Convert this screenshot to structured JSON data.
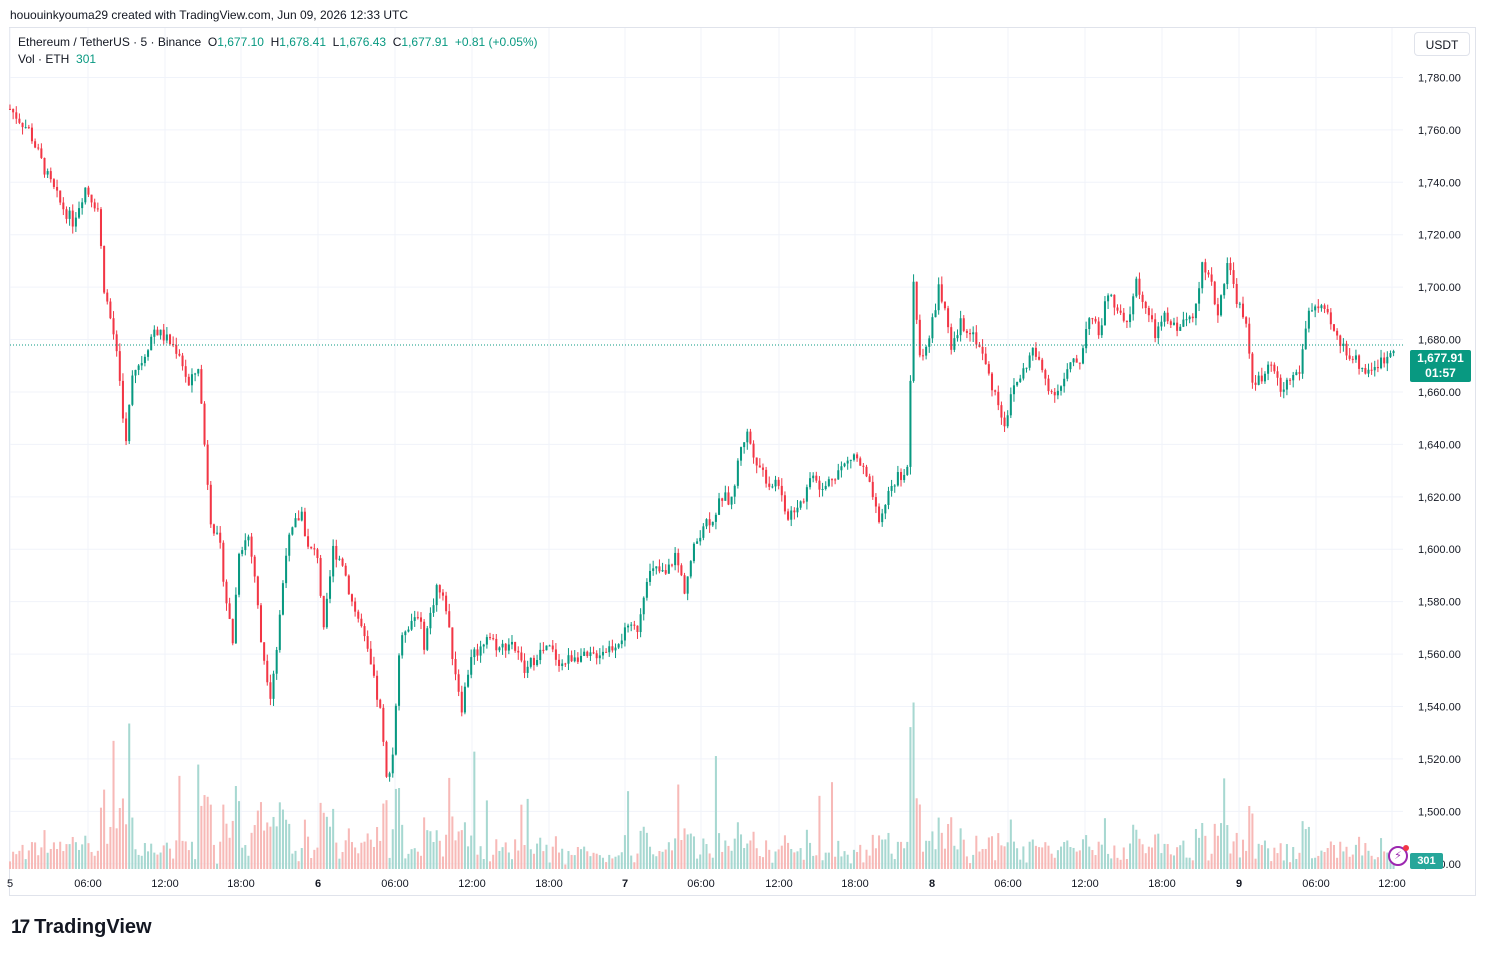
{
  "header": {
    "credit": "hououinkyouma29 created with TradingView.com, Jun 09, 2026 12:33 UTC"
  },
  "legend": {
    "symbol": "Ethereum / TetherUS · 5 · Binance",
    "o_label": "O",
    "o_value": "1,677.10",
    "h_label": "H",
    "h_value": "1,678.41",
    "l_label": "L",
    "l_value": "1,676.43",
    "c_label": "C",
    "c_value": "1,677.91",
    "change": "+0.81 (+0.05%)",
    "vol_label": "Vol · ETH",
    "vol_value": "301"
  },
  "currency_button": "USDT",
  "price_tag": {
    "price": "1,677.91",
    "countdown": "01:57"
  },
  "volume_tag": "301",
  "brand": {
    "logo": "17",
    "name": "TradingView"
  },
  "colors": {
    "up": "#089981",
    "down": "#f23645",
    "grid": "#f0f3fa",
    "vol_up": "#a7d8d1",
    "vol_down": "#f7b9b7"
  },
  "chart_data": {
    "type": "candlestick",
    "interval": "5",
    "y_axis_ticks": [
      "1,780.00",
      "1,760.00",
      "1,740.00",
      "1,720.00",
      "1,700.00",
      "1,680.00",
      "1,660.00",
      "1,640.00",
      "1,620.00",
      "1,600.00",
      "1,580.00",
      "1,560.00",
      "1,540.00",
      "1,520.00",
      "1,500.00",
      "1,480.00"
    ],
    "ylim": [
      1478,
      1792
    ],
    "x_axis_ticks": [
      "5",
      "06:00",
      "12:00",
      "18:00",
      "6",
      "06:00",
      "12:00",
      "18:00",
      "7",
      "06:00",
      "12:00",
      "18:00",
      "8",
      "06:00",
      "12:00",
      "18:00",
      "9",
      "06:00",
      "12:00"
    ],
    "bold_ticks": [
      "6",
      "7",
      "8",
      "9"
    ],
    "last_price": 1677.91,
    "price_path": [
      {
        "t": 0,
        "p": 1768
      },
      {
        "t": 3,
        "p": 1760
      },
      {
        "t": 6,
        "p": 1742
      },
      {
        "t": 8,
        "p": 1732
      },
      {
        "t": 10,
        "p": 1725
      },
      {
        "t": 12,
        "p": 1738
      },
      {
        "t": 14,
        "p": 1730
      },
      {
        "t": 15,
        "p": 1700
      },
      {
        "t": 17,
        "p": 1676
      },
      {
        "t": 18.5,
        "p": 1640
      },
      {
        "t": 19.5,
        "p": 1668
      },
      {
        "t": 21,
        "p": 1672
      },
      {
        "t": 23,
        "p": 1684
      },
      {
        "t": 25,
        "p": 1680
      },
      {
        "t": 27,
        "p": 1675
      },
      {
        "t": 28.5,
        "p": 1662
      },
      {
        "t": 30,
        "p": 1670
      },
      {
        "t": 31,
        "p": 1640
      },
      {
        "t": 32,
        "p": 1612
      },
      {
        "t": 33.5,
        "p": 1600
      },
      {
        "t": 34.5,
        "p": 1580
      },
      {
        "t": 35.5,
        "p": 1565
      },
      {
        "t": 36.5,
        "p": 1600
      },
      {
        "t": 38,
        "p": 1605
      },
      {
        "t": 39,
        "p": 1590
      },
      {
        "t": 40,
        "p": 1565
      },
      {
        "t": 41.5,
        "p": 1545
      },
      {
        "t": 42.5,
        "p": 1562
      },
      {
        "t": 44,
        "p": 1600
      },
      {
        "t": 45.5,
        "p": 1610
      },
      {
        "t": 46.5,
        "p": 1614
      },
      {
        "t": 47.5,
        "p": 1600
      },
      {
        "t": 49,
        "p": 1598
      },
      {
        "t": 50,
        "p": 1568
      },
      {
        "t": 51.5,
        "p": 1600
      },
      {
        "t": 53,
        "p": 1595
      },
      {
        "t": 54.5,
        "p": 1580
      },
      {
        "t": 56,
        "p": 1570
      },
      {
        "t": 57.5,
        "p": 1555
      },
      {
        "t": 59,
        "p": 1538
      },
      {
        "t": 60,
        "p": 1512
      },
      {
        "t": 61,
        "p": 1522
      },
      {
        "t": 62,
        "p": 1560
      },
      {
        "t": 63,
        "p": 1570
      },
      {
        "t": 65,
        "p": 1576
      },
      {
        "t": 66,
        "p": 1564
      },
      {
        "t": 68,
        "p": 1586
      },
      {
        "t": 69.5,
        "p": 1578
      },
      {
        "t": 70.5,
        "p": 1560
      },
      {
        "t": 72,
        "p": 1540
      },
      {
        "t": 73.5,
        "p": 1560
      },
      {
        "t": 75,
        "p": 1562
      },
      {
        "t": 76,
        "p": 1568
      },
      {
        "t": 78,
        "p": 1562
      },
      {
        "t": 80,
        "p": 1565
      },
      {
        "t": 82,
        "p": 1553
      },
      {
        "t": 84,
        "p": 1560
      },
      {
        "t": 86,
        "p": 1562
      },
      {
        "t": 88,
        "p": 1556
      },
      {
        "t": 90,
        "p": 1560
      },
      {
        "t": 92,
        "p": 1558
      },
      {
        "t": 94,
        "p": 1561
      },
      {
        "t": 96,
        "p": 1563
      },
      {
        "t": 98,
        "p": 1568
      },
      {
        "t": 100,
        "p": 1570
      },
      {
        "t": 101.5,
        "p": 1590
      },
      {
        "t": 103,
        "p": 1592
      },
      {
        "t": 104.5,
        "p": 1590
      },
      {
        "t": 106,
        "p": 1598
      },
      {
        "t": 107.5,
        "p": 1585
      },
      {
        "t": 109,
        "p": 1600
      },
      {
        "t": 110.5,
        "p": 1610
      },
      {
        "t": 112,
        "p": 1612
      },
      {
        "t": 113.5,
        "p": 1620
      },
      {
        "t": 115,
        "p": 1618
      },
      {
        "t": 116.5,
        "p": 1640
      },
      {
        "t": 117.5,
        "p": 1644
      },
      {
        "t": 119,
        "p": 1634
      },
      {
        "t": 121,
        "p": 1625
      },
      {
        "t": 122.5,
        "p": 1626
      },
      {
        "t": 123.5,
        "p": 1612
      },
      {
        "t": 125,
        "p": 1616
      },
      {
        "t": 126.5,
        "p": 1620
      },
      {
        "t": 128,
        "p": 1630
      },
      {
        "t": 129.5,
        "p": 1622
      },
      {
        "t": 131,
        "p": 1628
      },
      {
        "t": 133,
        "p": 1632
      },
      {
        "t": 134.5,
        "p": 1636
      },
      {
        "t": 136,
        "p": 1630
      },
      {
        "t": 137.5,
        "p": 1620
      },
      {
        "t": 138.5,
        "p": 1608
      },
      {
        "t": 140,
        "p": 1622
      },
      {
        "t": 141.5,
        "p": 1628
      },
      {
        "t": 143,
        "p": 1630
      },
      {
        "t": 144,
        "p": 1700
      },
      {
        "t": 145,
        "p": 1674
      },
      {
        "t": 146.5,
        "p": 1680
      },
      {
        "t": 148,
        "p": 1700
      },
      {
        "t": 149,
        "p": 1690
      },
      {
        "t": 150,
        "p": 1675
      },
      {
        "t": 151.5,
        "p": 1686
      },
      {
        "t": 153,
        "p": 1684
      },
      {
        "t": 154.5,
        "p": 1678
      },
      {
        "t": 156,
        "p": 1666
      },
      {
        "t": 157.5,
        "p": 1656
      },
      {
        "t": 158.5,
        "p": 1648
      },
      {
        "t": 160,
        "p": 1662
      },
      {
        "t": 161.5,
        "p": 1668
      },
      {
        "t": 163,
        "p": 1676
      },
      {
        "t": 164.5,
        "p": 1668
      },
      {
        "t": 166,
        "p": 1660
      },
      {
        "t": 167.5,
        "p": 1662
      },
      {
        "t": 169,
        "p": 1670
      },
      {
        "t": 170.5,
        "p": 1672
      },
      {
        "t": 172,
        "p": 1690
      },
      {
        "t": 173.5,
        "p": 1682
      },
      {
        "t": 175,
        "p": 1698
      },
      {
        "t": 176.5,
        "p": 1690
      },
      {
        "t": 178,
        "p": 1685
      },
      {
        "t": 179.5,
        "p": 1702
      },
      {
        "t": 181,
        "p": 1692
      },
      {
        "t": 182.5,
        "p": 1682
      },
      {
        "t": 184,
        "p": 1688
      },
      {
        "t": 185.5,
        "p": 1685
      },
      {
        "t": 187,
        "p": 1686
      },
      {
        "t": 188.5,
        "p": 1690
      },
      {
        "t": 190,
        "p": 1708
      },
      {
        "t": 191.5,
        "p": 1700
      },
      {
        "t": 192.5,
        "p": 1690
      },
      {
        "t": 194,
        "p": 1710
      },
      {
        "t": 195.5,
        "p": 1696
      },
      {
        "t": 197,
        "p": 1684
      },
      {
        "t": 198,
        "p": 1665
      },
      {
        "t": 199.5,
        "p": 1664
      },
      {
        "t": 201,
        "p": 1670
      },
      {
        "t": 202.5,
        "p": 1660
      },
      {
        "t": 204,
        "p": 1665
      },
      {
        "t": 205.5,
        "p": 1668
      },
      {
        "t": 207,
        "p": 1692
      },
      {
        "t": 208.5,
        "p": 1692
      },
      {
        "t": 210,
        "p": 1688
      },
      {
        "t": 211.5,
        "p": 1680
      },
      {
        "t": 213,
        "p": 1676
      },
      {
        "t": 214.5,
        "p": 1672
      },
      {
        "t": 216,
        "p": 1668
      },
      {
        "t": 217.5,
        "p": 1670
      },
      {
        "t": 219,
        "p": 1672
      },
      {
        "t": 220.5,
        "p": 1678
      }
    ]
  }
}
